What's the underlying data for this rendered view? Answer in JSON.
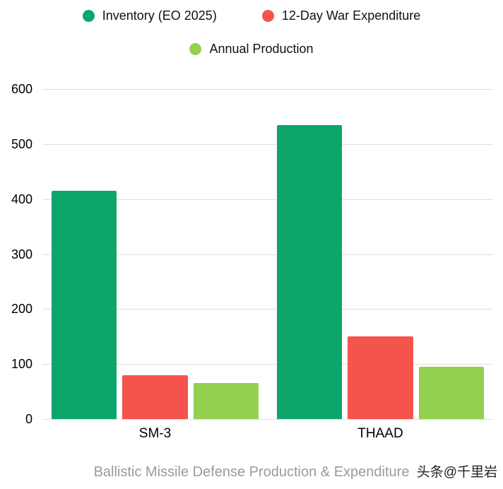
{
  "legend": {
    "items": [
      {
        "label": "Inventory (EO 2025)",
        "color": "#0ca66b"
      },
      {
        "label": "12-Day War Expenditure",
        "color": "#f5544d"
      },
      {
        "label": "Annual Production",
        "color": "#92d14f"
      }
    ]
  },
  "chart_data": {
    "type": "bar",
    "categories": [
      "SM-3",
      "THAAD"
    ],
    "series": [
      {
        "name": "Inventory (EO 2025)",
        "color": "#0ca66b",
        "values": [
          415,
          535
        ]
      },
      {
        "name": "12-Day War Expenditure",
        "color": "#f5544d",
        "values": [
          80,
          150
        ]
      },
      {
        "name": "Annual Production",
        "color": "#92d14f",
        "values": [
          65,
          95
        ]
      }
    ],
    "title": "Ballistic Missile Defense Production & Expenditure",
    "xlabel": "",
    "ylabel": "",
    "ylim": [
      0,
      600
    ],
    "yticks": [
      0,
      100,
      200,
      300,
      400,
      500,
      600
    ],
    "grid": "horizontal",
    "legend_position": "top"
  },
  "footer": {
    "title": "Ballistic Missile Defense Production & Expenditure",
    "watermark": "头条@千里岩"
  }
}
